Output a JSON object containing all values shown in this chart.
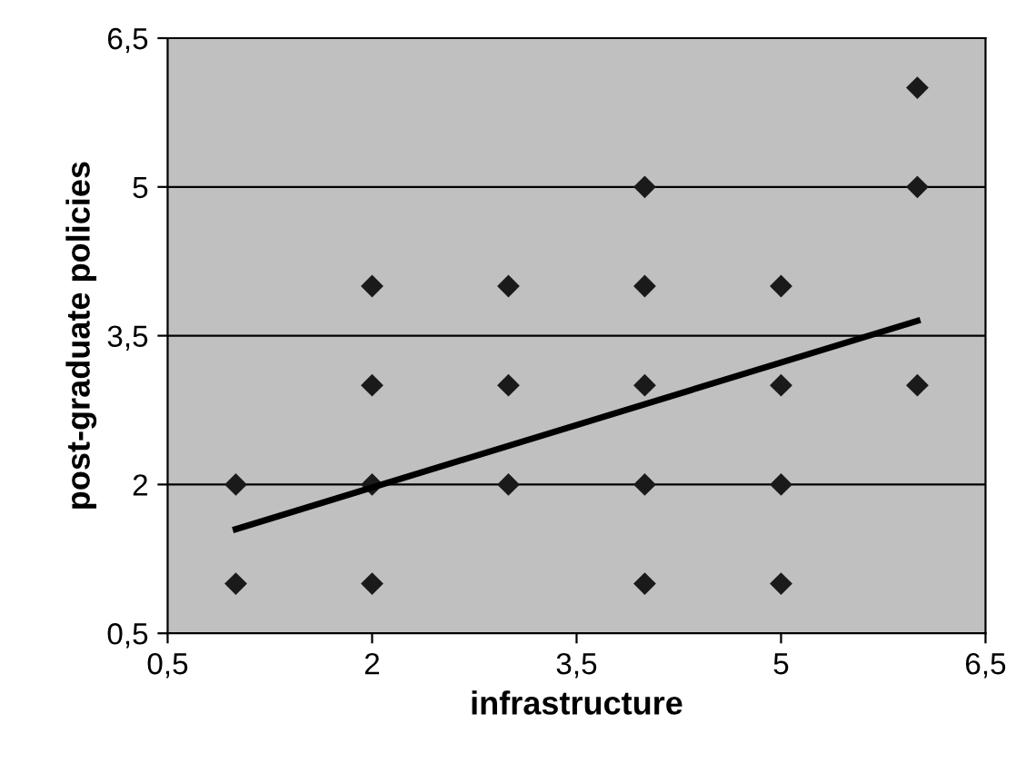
{
  "chart_data": {
    "type": "scatter",
    "xlabel": "infrastructure",
    "ylabel": "post-graduate policies",
    "xlim": [
      0.5,
      6.5
    ],
    "ylim": [
      0.5,
      6.5
    ],
    "xticks": [
      {
        "value": 0.5,
        "label": "0,5"
      },
      2,
      {
        "value": 3.5,
        "label": "3,5"
      },
      5,
      {
        "value": 6.5,
        "label": "6,5"
      }
    ],
    "yticks": [
      {
        "value": 0.5,
        "label": "0,5"
      },
      2,
      {
        "value": 3.5,
        "label": "3,5"
      },
      5,
      {
        "value": 6.5,
        "label": "6,5"
      }
    ],
    "grid": "y",
    "series": [
      {
        "marker": "diamond",
        "color": "#1a1a1a",
        "x": [
          1,
          1,
          2,
          2,
          2,
          2,
          3,
          3,
          3,
          4,
          4,
          4,
          4,
          4,
          5,
          5,
          5,
          5,
          6,
          6,
          6
        ],
        "values": [
          1,
          2,
          1,
          2,
          3,
          4,
          2,
          3,
          4,
          1,
          2,
          3,
          4,
          5,
          1,
          2,
          3,
          4,
          3,
          5,
          6
        ]
      },
      {
        "type": "line",
        "marker": "none",
        "color": "#000000",
        "x": [
          1,
          6
        ],
        "values": [
          1.55,
          3.65
        ]
      }
    ]
  }
}
